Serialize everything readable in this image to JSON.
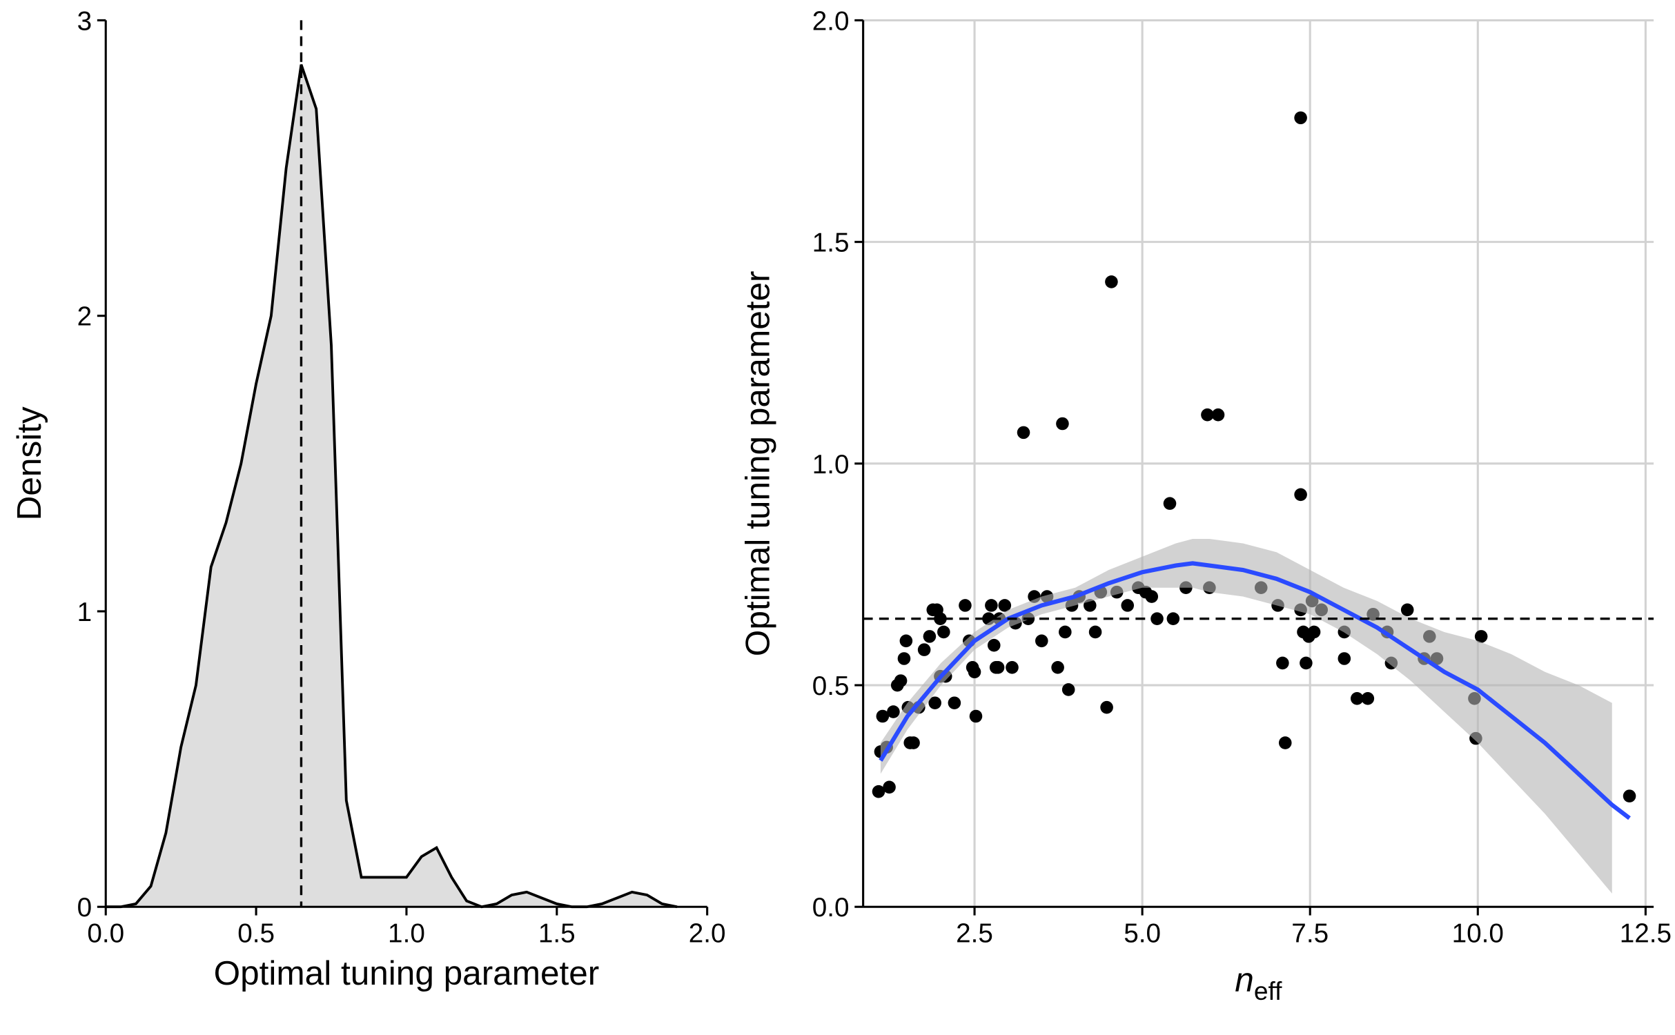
{
  "chart_data": [
    {
      "type": "area",
      "x_label": "Optimal tuning parameter",
      "y_label": "Density",
      "x": [
        0.0,
        0.05,
        0.1,
        0.15,
        0.2,
        0.25,
        0.3,
        0.35,
        0.4,
        0.45,
        0.5,
        0.55,
        0.6,
        0.65,
        0.7,
        0.75,
        0.8,
        0.85,
        0.9,
        0.95,
        1.0,
        1.05,
        1.1,
        1.15,
        1.2,
        1.25,
        1.3,
        1.35,
        1.4,
        1.45,
        1.5,
        1.55,
        1.6,
        1.65,
        1.7,
        1.75,
        1.8,
        1.85,
        1.9
      ],
      "values": [
        0,
        0,
        0.01,
        0.07,
        0.25,
        0.54,
        0.75,
        1.15,
        1.3,
        1.5,
        1.77,
        2.0,
        2.5,
        2.85,
        2.7,
        1.9,
        0.36,
        0.1,
        0.1,
        0.1,
        0.1,
        0.17,
        0.2,
        0.1,
        0.02,
        0.0,
        0.01,
        0.04,
        0.05,
        0.03,
        0.01,
        0.0,
        0.0,
        0.01,
        0.03,
        0.05,
        0.04,
        0.01,
        0.0
      ],
      "fill": "#dedede",
      "color": "#000000",
      "vline": 0.65,
      "xlim": [
        0,
        2
      ],
      "ylim": [
        0,
        3
      ],
      "xticks": [
        {
          "value": 0,
          "label": "0.0"
        },
        0.5,
        {
          "value": 1,
          "label": "1.0"
        },
        1.5,
        {
          "value": 2,
          "label": "2.0"
        }
      ],
      "yticks": [
        0,
        1,
        2,
        3
      ],
      "grid": false
    },
    {
      "type": "scatter",
      "x_label": "n",
      "x_label_subscript": "eff",
      "y_label": "Optimal tuning parameter",
      "x": [
        1.07,
        1.23,
        1.1,
        1.19,
        1.13,
        1.29,
        1.35,
        1.4,
        1.45,
        1.48,
        1.54,
        1.59,
        1.51,
        1.67,
        1.75,
        1.83,
        1.88,
        1.94,
        1.99,
        2.04,
        1.91,
        1.99,
        2.07,
        2.2,
        2.36,
        2.42,
        2.47,
        2.5,
        2.52,
        2.71,
        2.75,
        2.79,
        2.82,
        2.85,
        2.87,
        2.95,
        3.06,
        3.11,
        3.23,
        3.3,
        3.39,
        3.5,
        3.58,
        3.74,
        3.81,
        3.85,
        3.9,
        3.95,
        4.06,
        4.22,
        4.3,
        4.38,
        4.47,
        4.54,
        4.62,
        4.78,
        4.94,
        5.05,
        5.14,
        5.22,
        5.41,
        5.46,
        5.65,
        5.97,
        6.13,
        6.0,
        6.77,
        7.02,
        7.09,
        7.13,
        7.36,
        7.36,
        7.36,
        7.4,
        7.44,
        7.48,
        7.56,
        7.53,
        7.67,
        8.01,
        8.01,
        8.2,
        8.36,
        8.44,
        8.65,
        8.71,
        8.95,
        9.2,
        9.28,
        9.39,
        9.95,
        9.97,
        10.05,
        12.26
      ],
      "values": [
        0.26,
        0.27,
        0.35,
        0.36,
        0.43,
        0.44,
        0.5,
        0.51,
        0.56,
        0.6,
        0.37,
        0.37,
        0.45,
        0.45,
        0.58,
        0.61,
        0.67,
        0.67,
        0.65,
        0.62,
        0.46,
        0.52,
        0.52,
        0.46,
        0.68,
        0.6,
        0.54,
        0.53,
        0.43,
        0.65,
        0.68,
        0.59,
        0.54,
        0.54,
        0.65,
        0.68,
        0.54,
        0.64,
        1.07,
        0.65,
        0.7,
        0.6,
        0.7,
        0.54,
        1.09,
        0.62,
        0.49,
        0.68,
        0.7,
        0.68,
        0.62,
        0.71,
        0.45,
        1.41,
        0.71,
        0.68,
        0.72,
        0.71,
        0.7,
        0.65,
        0.91,
        0.65,
        0.72,
        1.11,
        1.11,
        0.72,
        0.72,
        0.68,
        0.55,
        0.37,
        1.78,
        0.93,
        0.67,
        0.62,
        0.55,
        0.61,
        0.62,
        0.69,
        0.67,
        0.62,
        0.56,
        0.47,
        0.47,
        0.66,
        0.62,
        0.55,
        0.67,
        0.56,
        0.61,
        0.56,
        0.47,
        0.38,
        0.61,
        0.25
      ],
      "color": "#000000",
      "smooth": {
        "x": [
          1.1,
          1.5,
          2,
          2.5,
          3,
          3.5,
          4,
          4.5,
          5,
          5.5,
          5.75,
          6,
          6.5,
          7,
          7.5,
          8,
          8.5,
          9,
          9.5,
          10,
          10.5,
          11,
          11.5,
          12,
          12.26
        ],
        "values": [
          0.33,
          0.43,
          0.52,
          0.6,
          0.65,
          0.68,
          0.7,
          0.73,
          0.755,
          0.77,
          0.775,
          0.77,
          0.76,
          0.74,
          0.71,
          0.67,
          0.63,
          0.58,
          0.53,
          0.49,
          0.43,
          0.37,
          0.3,
          0.23,
          0.2
        ],
        "color": "#2b4bff"
      },
      "ribbon": {
        "x": [
          1.1,
          1.5,
          2,
          2.5,
          3,
          3.5,
          4,
          4.5,
          5,
          5.5,
          5.75,
          6,
          6.5,
          7,
          7.5,
          8,
          8.5,
          9,
          9.5,
          10,
          10.5,
          11,
          11.5,
          12
        ],
        "lower": [
          0.3,
          0.4,
          0.5,
          0.58,
          0.63,
          0.66,
          0.68,
          0.7,
          0.72,
          0.72,
          0.72,
          0.71,
          0.7,
          0.68,
          0.66,
          0.62,
          0.57,
          0.51,
          0.44,
          0.37,
          0.29,
          0.21,
          0.12,
          0.03
        ],
        "upper": [
          0.37,
          0.46,
          0.55,
          0.62,
          0.67,
          0.7,
          0.72,
          0.76,
          0.79,
          0.82,
          0.83,
          0.83,
          0.82,
          0.8,
          0.76,
          0.72,
          0.69,
          0.65,
          0.62,
          0.6,
          0.57,
          0.53,
          0.5,
          0.46
        ],
        "color": "#b4b4b4"
      },
      "hline": 0.65,
      "xlim": [
        0.84,
        12.62
      ],
      "ylim": [
        0,
        2
      ],
      "xticks": [
        2.5,
        {
          "value": 5,
          "label": "5.0"
        },
        7.5,
        {
          "value": 10,
          "label": "10.0"
        },
        12.5
      ],
      "yticks": [
        {
          "value": 0,
          "label": "0.0"
        },
        0.5,
        {
          "value": 1,
          "label": "1.0"
        },
        1.5,
        {
          "value": 2,
          "label": "2.0"
        }
      ],
      "grid": true
    }
  ]
}
